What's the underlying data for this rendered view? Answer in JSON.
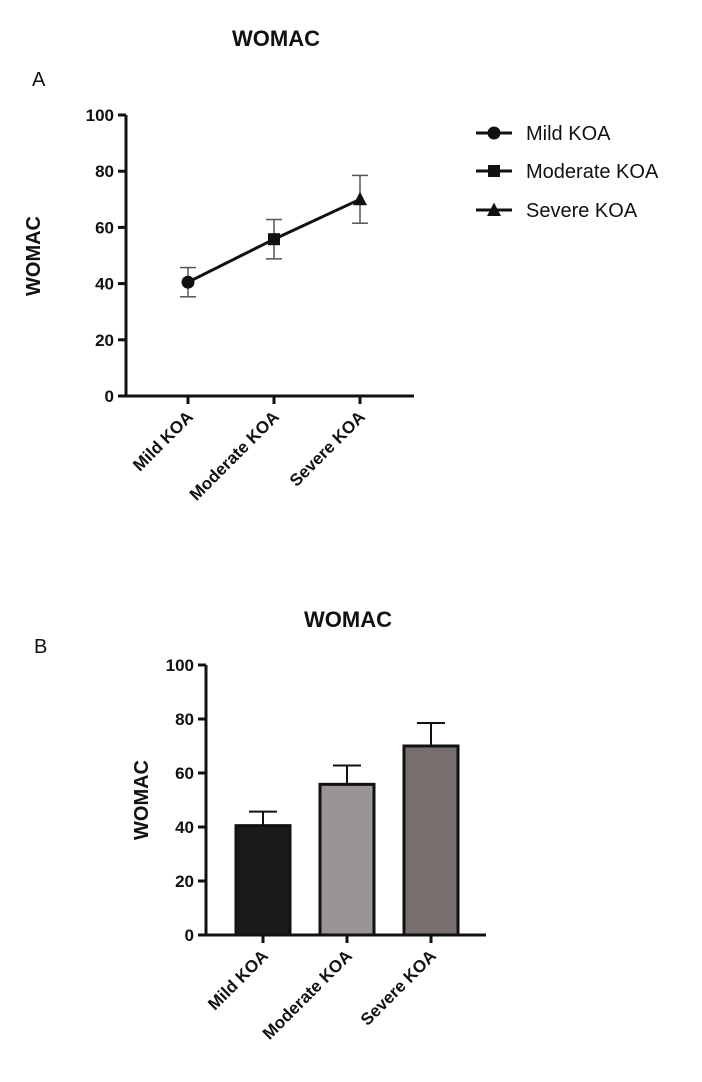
{
  "chart_data": [
    {
      "panel": "A",
      "type": "line",
      "title": "WOMAC",
      "xlabel": "",
      "ylabel": "WOMAC",
      "ylim": [
        0,
        100
      ],
      "yticks": [
        0,
        20,
        40,
        60,
        80,
        100
      ],
      "categories": [
        "Mild KOA",
        "Moderate KOA",
        "Severe KOA"
      ],
      "values": [
        40.5,
        55.8,
        70.0
      ],
      "errors": [
        5.2,
        7.0,
        8.5
      ],
      "markers": [
        "circle",
        "square",
        "triangle"
      ],
      "legend": [
        "Mild KOA",
        "Moderate KOA",
        "Severe KOA"
      ],
      "legend_position": "right",
      "grid": false
    },
    {
      "panel": "B",
      "type": "bar",
      "title": "WOMAC",
      "xlabel": "",
      "ylabel": "WOMAC",
      "ylim": [
        0,
        100
      ],
      "yticks": [
        0,
        20,
        40,
        60,
        80,
        100
      ],
      "categories": [
        "Mild KOA",
        "Moderate KOA",
        "Severe KOA"
      ],
      "values": [
        40.5,
        55.8,
        70.0
      ],
      "errors": [
        5.2,
        7.0,
        8.5
      ],
      "colors": [
        "#1a1a1a",
        "#9a9495",
        "#78706f"
      ],
      "grid": false
    }
  ]
}
